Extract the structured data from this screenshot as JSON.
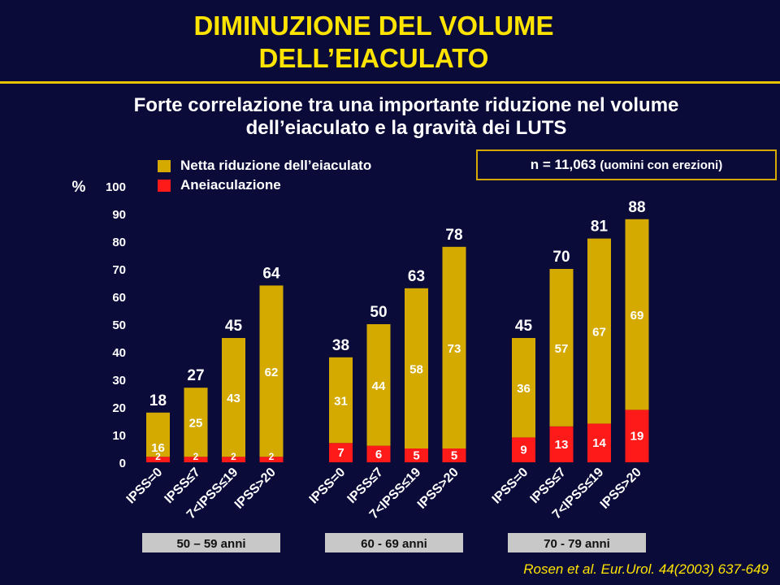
{
  "title_line1": "DIMINUZIONE DEL VOLUME",
  "title_line2": "DELL’EIACULATO",
  "subtitle_line1": "Forte correlazione tra una importante riduzione nel volume",
  "subtitle_line2": "dell’eiaculato e la gravità dei LUTS",
  "legend": [
    {
      "label": "Netta riduzione dell’eiaculato",
      "color": "#d4aa00"
    },
    {
      "label": "Aneiaculazione",
      "color": "#ff1a1a"
    }
  ],
  "sample_note_main": "n = 11,063",
  "sample_note_detail": "(uomini con erezioni)",
  "citation": "Rosen et al. Eur.Urol. 44(2003) 637-649",
  "colors": {
    "reduction": "#d4aa00",
    "aneiaculation": "#ff1a1a",
    "background": "#0b0b3a",
    "title": "#ffe400"
  },
  "chart_data": {
    "type": "bar",
    "stacked": true,
    "ylabel": "%",
    "ylim": [
      0,
      100
    ],
    "yticks": [
      0,
      10,
      20,
      30,
      40,
      50,
      60,
      70,
      80,
      90,
      100
    ],
    "grid": false,
    "legend_position": "top-left",
    "categories": [
      "IPSS=0",
      "IPSS≤7",
      "7<IPSS≤19",
      "IPSS>20"
    ],
    "groups": [
      {
        "name": "50 – 59 anni",
        "aneiaculazione": [
          2,
          2,
          2,
          2
        ],
        "netta_riduzione": [
          16,
          25,
          43,
          62
        ],
        "totals": [
          18,
          27,
          45,
          64
        ]
      },
      {
        "name": "60 - 69 anni",
        "aneiaculazione": [
          7,
          6,
          5,
          5
        ],
        "netta_riduzione": [
          31,
          44,
          58,
          73
        ],
        "totals": [
          38,
          50,
          63,
          78
        ]
      },
      {
        "name": "70 - 79 anni",
        "aneiaculazione": [
          9,
          13,
          14,
          19
        ],
        "netta_riduzione": [
          36,
          57,
          67,
          69
        ],
        "totals": [
          45,
          70,
          81,
          88
        ]
      }
    ]
  }
}
